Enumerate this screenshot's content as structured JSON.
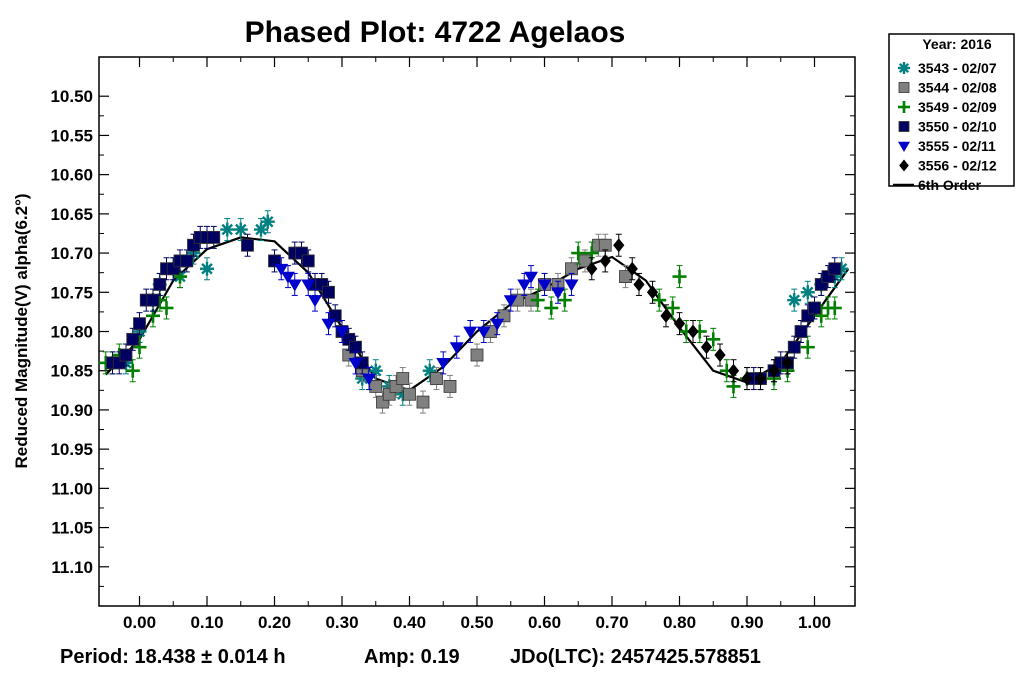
{
  "chart_data": {
    "type": "scatter",
    "title": "Phased Plot: 4722 Agelaos",
    "xlabel": "",
    "ylabel": "Reduced Magnitude(V) alpha(6.2°)",
    "xlim": [
      -0.06,
      1.06
    ],
    "ylim": [
      10.45,
      11.15
    ],
    "y_inverted": true,
    "grid": false,
    "legend_position": "top-right outside",
    "x_ticks": [
      "0.00",
      "0.10",
      "0.20",
      "0.30",
      "0.40",
      "0.50",
      "0.60",
      "0.70",
      "0.80",
      "0.90",
      "1.00"
    ],
    "y_ticks": [
      "10.50",
      "10.55",
      "10.60",
      "10.65",
      "10.70",
      "10.75",
      "10.80",
      "10.85",
      "10.90",
      "10.95",
      "11.00",
      "11.05",
      "11.10"
    ],
    "legend_title": "Year: 2016",
    "series": [
      {
        "name": "3543 - 02/07",
        "color": "#008080",
        "marker": "asterisk",
        "x": [
          -0.04,
          -0.02,
          0.0,
          0.02,
          0.03,
          0.05,
          0.06,
          0.08,
          0.1,
          0.13,
          0.15,
          0.18,
          0.19,
          0.33,
          0.35,
          0.37,
          0.39,
          0.43,
          0.97,
          0.99,
          1.01,
          1.03,
          1.04
        ],
        "y": [
          10.84,
          10.84,
          10.8,
          10.76,
          10.74,
          10.72,
          10.73,
          10.7,
          10.72,
          10.67,
          10.67,
          10.67,
          10.66,
          10.86,
          10.85,
          10.87,
          10.88,
          10.85,
          10.76,
          10.75,
          10.74,
          10.73,
          10.72
        ]
      },
      {
        "name": "3544 - 02/08",
        "color": "#808080",
        "marker": "square",
        "x": [
          0.31,
          0.33,
          0.35,
          0.36,
          0.37,
          0.38,
          0.39,
          0.4,
          0.42,
          0.44,
          0.46,
          0.5,
          0.52,
          0.54,
          0.56,
          0.58,
          0.6,
          0.62,
          0.64,
          0.66,
          0.68,
          0.69,
          0.72
        ],
        "y": [
          10.83,
          10.85,
          10.87,
          10.89,
          10.88,
          10.87,
          10.86,
          10.88,
          10.89,
          10.86,
          10.87,
          10.83,
          10.8,
          10.78,
          10.76,
          10.76,
          10.74,
          10.74,
          10.72,
          10.71,
          10.69,
          10.69,
          10.73
        ]
      },
      {
        "name": "3549 - 02/09",
        "color": "#007f00",
        "marker": "plus",
        "x": [
          -0.05,
          -0.03,
          -0.01,
          0.0,
          0.02,
          0.03,
          0.04,
          0.06,
          0.59,
          0.61,
          0.63,
          0.65,
          0.67,
          0.77,
          0.79,
          0.8,
          0.81,
          0.83,
          0.85,
          0.87,
          0.88,
          0.9,
          0.94,
          0.96,
          0.99,
          1.01,
          1.02,
          1.03
        ],
        "y": [
          10.84,
          10.83,
          10.85,
          10.82,
          10.78,
          10.76,
          10.77,
          10.73,
          10.76,
          10.77,
          10.76,
          10.7,
          10.7,
          10.76,
          10.77,
          10.73,
          10.8,
          10.8,
          10.81,
          10.85,
          10.87,
          10.86,
          10.86,
          10.85,
          10.82,
          10.78,
          10.77,
          10.77
        ]
      },
      {
        "name": "3550 - 02/10",
        "color": "#000060",
        "marker": "square",
        "x": [
          -0.04,
          -0.03,
          -0.02,
          -0.01,
          0.0,
          0.01,
          0.02,
          0.03,
          0.04,
          0.05,
          0.06,
          0.07,
          0.08,
          0.09,
          0.1,
          0.11,
          0.16,
          0.2,
          0.23,
          0.24,
          0.25,
          0.26,
          0.27,
          0.28,
          0.29,
          0.3,
          0.31,
          0.32,
          0.33,
          0.91,
          0.92,
          0.94,
          0.95,
          0.96,
          0.97,
          0.98,
          0.99,
          1.0,
          1.01,
          1.02,
          1.03
        ],
        "y": [
          10.84,
          10.84,
          10.83,
          10.81,
          10.79,
          10.76,
          10.76,
          10.74,
          10.72,
          10.72,
          10.71,
          10.71,
          10.69,
          10.68,
          10.68,
          10.68,
          10.69,
          10.71,
          10.7,
          10.7,
          10.71,
          10.74,
          10.74,
          10.75,
          10.78,
          10.8,
          10.81,
          10.82,
          10.84,
          10.86,
          10.86,
          10.85,
          10.84,
          10.84,
          10.82,
          10.8,
          10.78,
          10.77,
          10.74,
          10.73,
          10.72
        ]
      },
      {
        "name": "3555 - 02/11",
        "color": "#0000cc",
        "marker": "triangle",
        "x": [
          0.21,
          0.22,
          0.23,
          0.25,
          0.26,
          0.28,
          0.3,
          0.32,
          0.34,
          0.45,
          0.47,
          0.49,
          0.51,
          0.53,
          0.55,
          0.57,
          0.58,
          0.6,
          0.62,
          0.64
        ],
        "y": [
          10.72,
          10.73,
          10.74,
          10.74,
          10.76,
          10.79,
          10.8,
          10.84,
          10.86,
          10.84,
          10.82,
          10.8,
          10.8,
          10.79,
          10.76,
          10.74,
          10.73,
          10.74,
          10.75,
          10.74
        ]
      },
      {
        "name": "3556 - 02/12",
        "color": "#000000",
        "marker": "diamond",
        "x": [
          0.67,
          0.69,
          0.71,
          0.73,
          0.74,
          0.76,
          0.78,
          0.8,
          0.82,
          0.84,
          0.86,
          0.88,
          0.9,
          0.92,
          0.94,
          0.96
        ],
        "y": [
          10.72,
          10.71,
          10.69,
          10.72,
          10.74,
          10.75,
          10.78,
          10.79,
          10.8,
          10.82,
          10.83,
          10.85,
          10.86,
          10.86,
          10.85,
          10.84
        ]
      },
      {
        "name": "6th Order",
        "color": "#000000",
        "marker": "line",
        "x": [
          -0.05,
          0.0,
          0.05,
          0.1,
          0.15,
          0.2,
          0.25,
          0.3,
          0.35,
          0.4,
          0.45,
          0.5,
          0.55,
          0.6,
          0.65,
          0.7,
          0.75,
          0.8,
          0.85,
          0.9,
          0.95,
          1.0,
          1.05
        ],
        "y": [
          10.855,
          10.81,
          10.735,
          10.695,
          10.68,
          10.685,
          10.725,
          10.795,
          10.86,
          10.875,
          10.845,
          10.8,
          10.765,
          10.745,
          10.72,
          10.705,
          10.735,
          10.795,
          10.85,
          10.865,
          10.84,
          10.78,
          10.72
        ]
      }
    ],
    "footer": {
      "period": "Period: 18.438 ± 0.014 h",
      "amp": "Amp: 0.19",
      "jdo": "JDo(LTC): 2457425.578851"
    }
  }
}
